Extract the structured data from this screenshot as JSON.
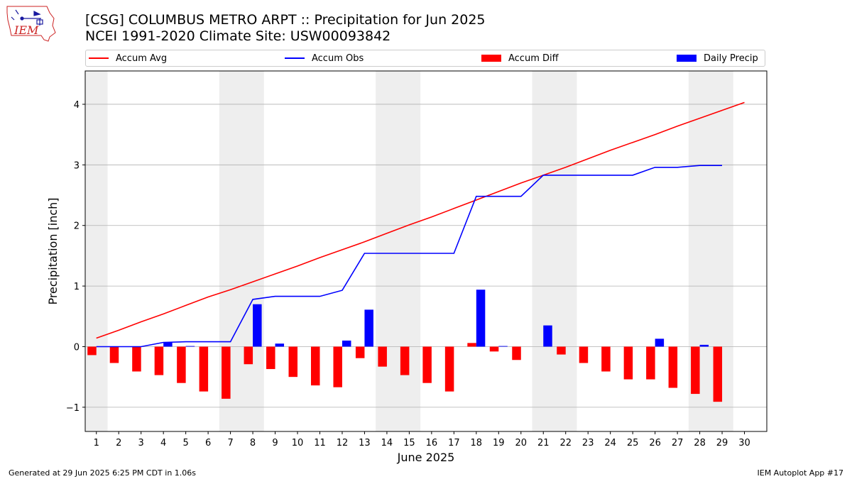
{
  "header": {
    "title_line1": "[CSG] COLUMBUS METRO ARPT :: Precipitation for Jun 2025",
    "title_line2": "NCEI 1991-2020 Climate Site: USW00093842",
    "logo_text": "IEM"
  },
  "footer": {
    "generated": "Generated at 29 Jun 2025 6:25 PM CDT in 1.06s",
    "app": "IEM Autoplot App #17"
  },
  "colors": {
    "accum_avg": "#ff0000",
    "accum_obs": "#0000ff",
    "accum_diff": "#ff0000",
    "daily_precip": "#0000ff",
    "weekend_shade": "#eeeeee",
    "grid": "#b0b0b0"
  },
  "chart_data": {
    "type": "bar",
    "xlabel": "June 2025",
    "ylabel": "Precipitation [inch]",
    "xlim": [
      0.5,
      31
    ],
    "ylim": [
      -1.4,
      4.55
    ],
    "yticks": [
      -1,
      0,
      1,
      2,
      3,
      4
    ],
    "ytick_labels": [
      "−1",
      "0",
      "1",
      "2",
      "3",
      "4"
    ],
    "grid": "horizontal",
    "legend_position": "top",
    "legend": [
      {
        "label": "Accum Avg",
        "kind": "line",
        "key": "accum_avg"
      },
      {
        "label": "Accum Obs",
        "kind": "line",
        "key": "accum_obs"
      },
      {
        "label": "Accum Diff",
        "kind": "box",
        "key": "accum_diff"
      },
      {
        "label": "Daily Precip",
        "kind": "box",
        "key": "daily_precip"
      }
    ],
    "days": [
      1,
      2,
      3,
      4,
      5,
      6,
      7,
      8,
      9,
      10,
      11,
      12,
      13,
      14,
      15,
      16,
      17,
      18,
      19,
      20,
      21,
      22,
      23,
      24,
      25,
      26,
      27,
      28,
      29,
      30
    ],
    "day_labels": [
      "1",
      "2",
      "3",
      "4",
      "5",
      "6",
      "7",
      "8",
      "9",
      "10",
      "11",
      "12",
      "13",
      "14",
      "15",
      "16",
      "17",
      "18",
      "19",
      "20",
      "21",
      "22",
      "23",
      "24",
      "25",
      "26",
      "27",
      "28",
      "29",
      "30"
    ],
    "weekend_spans": [
      [
        0.5,
        1.5
      ],
      [
        6.5,
        8.5
      ],
      [
        13.5,
        15.5
      ],
      [
        20.5,
        22.5
      ],
      [
        27.5,
        29.5
      ]
    ],
    "series": [
      {
        "name": "Accum Avg",
        "type": "line",
        "values": [
          0.14,
          0.27,
          0.41,
          0.54,
          0.68,
          0.82,
          0.94,
          1.07,
          1.2,
          1.33,
          1.47,
          1.6,
          1.73,
          1.87,
          2.01,
          2.14,
          2.28,
          2.42,
          2.56,
          2.7,
          2.83,
          2.96,
          3.1,
          3.24,
          3.37,
          3.5,
          3.64,
          3.77,
          3.9,
          4.03
        ]
      },
      {
        "name": "Accum Obs",
        "type": "line",
        "values": [
          0.0,
          0.0,
          0.0,
          0.07,
          0.08,
          0.08,
          0.08,
          0.78,
          0.83,
          0.83,
          0.83,
          0.93,
          1.54,
          1.54,
          1.54,
          1.54,
          1.54,
          2.48,
          2.48,
          2.48,
          2.83,
          2.83,
          2.83,
          2.83,
          2.83,
          2.96,
          2.96,
          2.99,
          2.99,
          null
        ]
      },
      {
        "name": "Accum Diff",
        "type": "bar",
        "values": [
          -0.14,
          -0.27,
          -0.41,
          -0.47,
          -0.6,
          -0.74,
          -0.86,
          -0.29,
          -0.37,
          -0.5,
          -0.64,
          -0.67,
          -0.19,
          -0.33,
          -0.47,
          -0.6,
          -0.74,
          0.06,
          -0.08,
          -0.22,
          0.0,
          -0.13,
          -0.27,
          -0.41,
          -0.54,
          -0.54,
          -0.68,
          -0.78,
          -0.91,
          null
        ]
      },
      {
        "name": "Daily Precip",
        "type": "bar",
        "values": [
          0.0,
          0.0,
          0.0,
          0.07,
          0.01,
          0.0,
          0.0,
          0.7,
          0.05,
          0.0,
          0.0,
          0.1,
          0.61,
          0.0,
          0.0,
          0.0,
          0.0,
          0.94,
          0.01,
          0.0,
          0.35,
          0.0,
          0.0,
          0.0,
          0.0,
          0.13,
          0.0,
          0.03,
          0.0,
          null
        ]
      }
    ]
  }
}
